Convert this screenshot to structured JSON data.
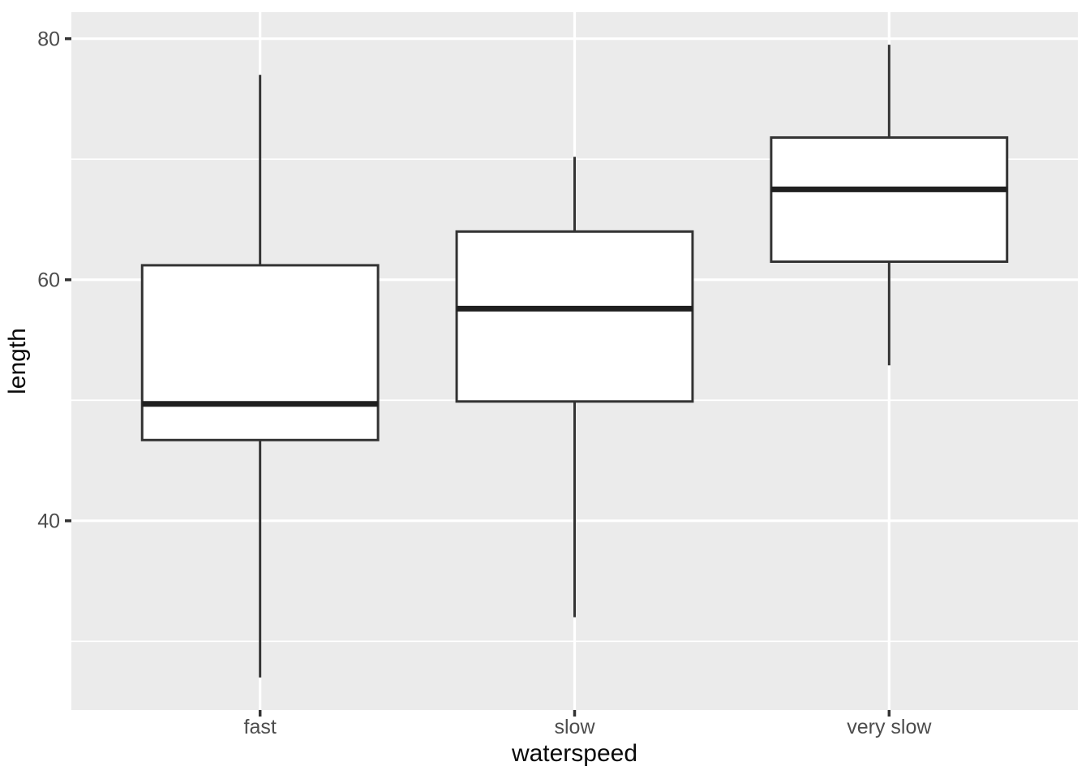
{
  "chart_data": {
    "type": "boxplot",
    "title": "",
    "xlabel": "waterspeed",
    "ylabel": "length",
    "categories": [
      "fast",
      "slow",
      "very slow"
    ],
    "series": [
      {
        "name": "fast",
        "whisker_low": 27.0,
        "q1": 46.7,
        "median": 49.7,
        "q3": 61.2,
        "whisker_high": 77.0,
        "outliers": []
      },
      {
        "name": "slow",
        "whisker_low": 32.0,
        "q1": 49.9,
        "median": 57.6,
        "q3": 64.0,
        "whisker_high": 70.2,
        "outliers": []
      },
      {
        "name": "very slow",
        "whisker_low": 52.9,
        "q1": 61.5,
        "median": 67.5,
        "q3": 71.8,
        "whisker_high": 79.5,
        "outliers": []
      }
    ],
    "y_axis": {
      "ticks": [
        40,
        60,
        80
      ],
      "tick_labels": [
        "40",
        "60",
        "80"
      ],
      "minor_ticks": [
        30,
        50,
        70
      ],
      "range": [
        24.3,
        82.2
      ]
    },
    "x_axis": {
      "tick_labels": [
        "fast",
        "slow",
        "very slow"
      ]
    },
    "grid": true,
    "legend_position": "none",
    "style": {
      "figure_bg": "#FFFFFF",
      "panel_bg": "#EBEBEB",
      "grid_color": "#FFFFFF",
      "box_fill": "#FFFFFF",
      "box_stroke": "#333333",
      "median_color": "#1F1F1F",
      "whisker_color": "#333333",
      "tick_mark_color": "#333333",
      "axis_text_color": "#4D4D4D",
      "axis_title_color": "#0A0A0A"
    }
  }
}
